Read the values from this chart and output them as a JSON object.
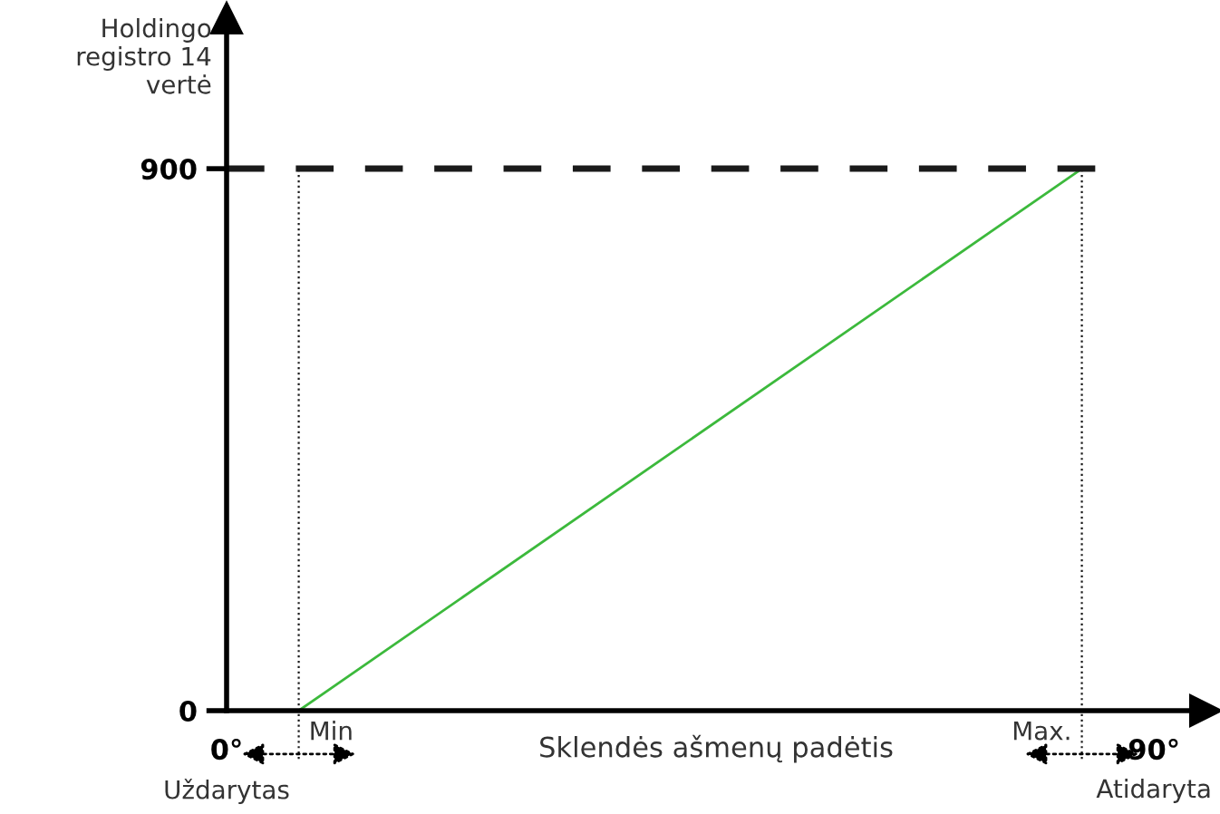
{
  "chart_data": {
    "type": "line",
    "xlabel": "Sklendės ašmenų padėtis",
    "ylabel": "Holdingo\nregistro 14\nvertė",
    "series": [
      {
        "color": "#3cb93c",
        "x": [
          7,
          83
        ],
        "values": [
          0,
          900
        ]
      }
    ],
    "xlim": [
      0,
      95
    ],
    "xticks": [
      {
        "value": 0,
        "label": "0°"
      },
      {
        "value": 90,
        "label": "90°"
      }
    ],
    "ylim": [
      0,
      1150
    ],
    "yticks": [
      0,
      900
    ],
    "ref_lines": [
      {
        "axis": "y",
        "value": 900,
        "color": "#1a1a1a",
        "line_style": "dashed"
      },
      {
        "axis": "x",
        "value": 7,
        "label": "Min",
        "color": "#1a1a1a",
        "line_style": "dotted"
      },
      {
        "axis": "x",
        "value": 83,
        "label": "Max.",
        "color": "#1a1a1a",
        "line_style": "dotted"
      }
    ],
    "annotations": [
      "Uždarytas",
      "Atidaryta"
    ],
    "grid": false,
    "legend": false,
    "marker": "none",
    "line_style": "solid"
  }
}
